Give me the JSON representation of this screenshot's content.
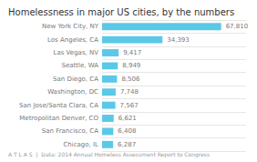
{
  "chart_data": {
    "type": "bar",
    "orientation": "horizontal",
    "title": "Homelessness in major US cities, by the numbers",
    "annotations": [
      "A T L A S  |  Data: 2014 Annual Homeless Assessment Report to Congress"
    ],
    "categories": [
      "Chicago, IL",
      "San Francisco, CA",
      "Metropolitan Denver, CO",
      "San Jose/Santa Clara, CA",
      "Washington, DC",
      "San Diego, CA",
      "Seattle, WA",
      "Las Vegas, NV",
      "Los Angeles, CA",
      "New York City, NY"
    ],
    "values": [
      6287,
      6408,
      6621,
      7567,
      7748,
      8506,
      8949,
      9417,
      34393,
      67810
    ],
    "value_labels": [
      "6,287",
      "6,408",
      "6,621",
      "7,567",
      "7,748",
      "8,506",
      "8,949",
      "9,417",
      "34,393",
      "67,810"
    ],
    "data_labels": true,
    "color": "#5bc8e8",
    "xlim": [
      0,
      82000
    ],
    "tick_labels": "y",
    "grid": true
  }
}
